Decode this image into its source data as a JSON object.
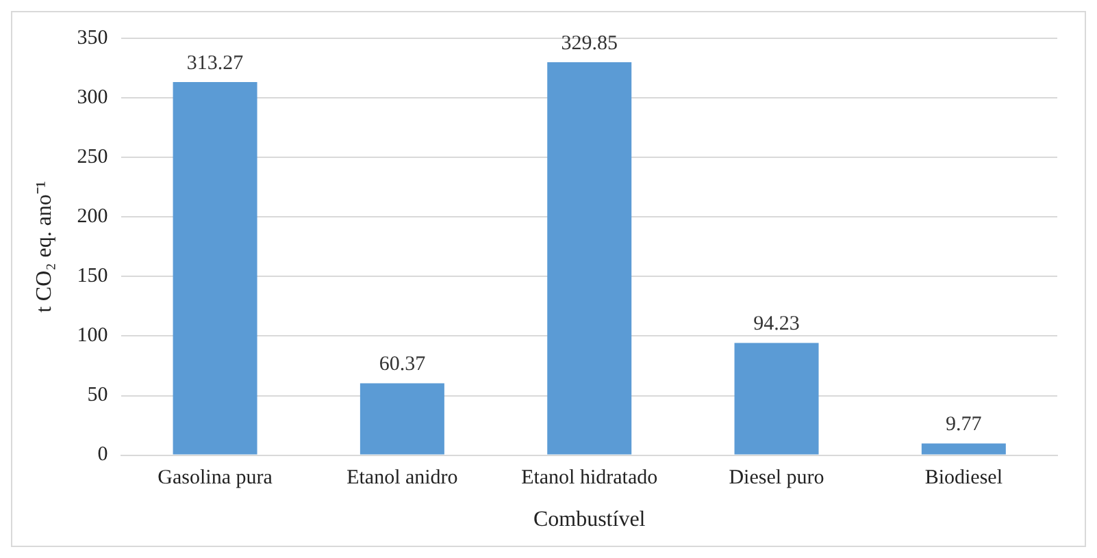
{
  "chart_data": {
    "type": "bar",
    "xlabel": "Combustível",
    "ylabel": "t CO₂ eq. ano⁻¹",
    "categories": [
      "Gasolina pura",
      "Etanol anidro",
      "Etanol hidratado",
      "Diesel puro",
      "Biodiesel"
    ],
    "values": [
      313.27,
      60.37,
      329.85,
      94.23,
      9.77
    ],
    "color": "#5b9bd5",
    "ylim": [
      0,
      350
    ],
    "yticks": [
      0,
      50,
      100,
      150,
      200,
      250,
      300,
      350
    ],
    "grid": "y",
    "data_labels": true,
    "legend": false
  }
}
